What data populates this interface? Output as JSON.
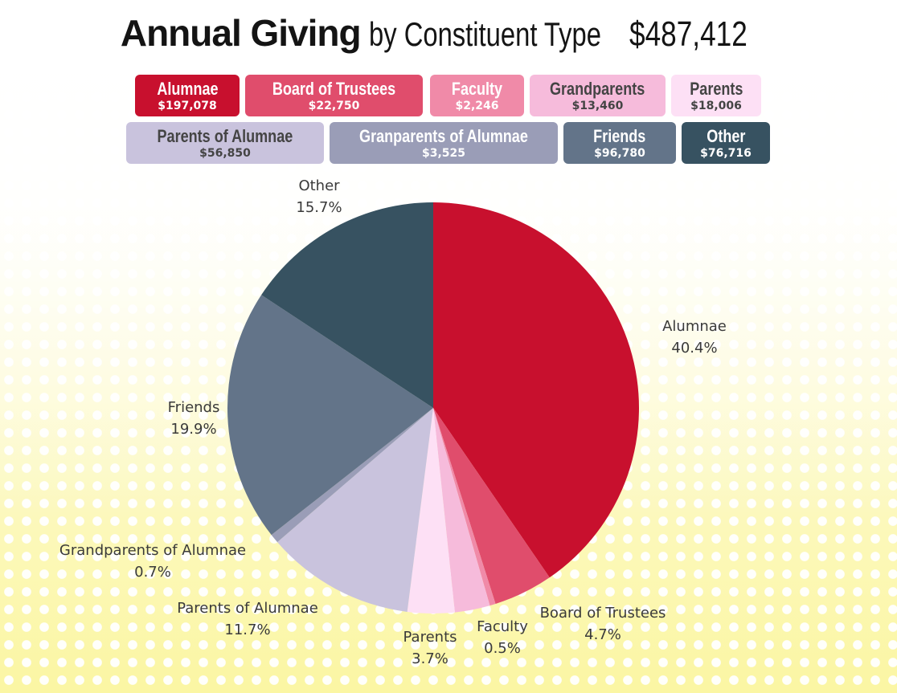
{
  "title": {
    "bold": "Annual Giving",
    "rest": "by Constituent Type",
    "total": "$487,412"
  },
  "legend": [
    {
      "name": "Alumnae",
      "amount": "$197,078",
      "bg": "#c8102e",
      "fg": "#ffffff"
    },
    {
      "name": "Board of Trustees",
      "amount": "$22,750",
      "bg": "#e04d6c",
      "fg": "#ffffff"
    },
    {
      "name": "Faculty",
      "amount": "$2,246",
      "bg": "#f08aa8",
      "fg": "#ffffff"
    },
    {
      "name": "Grandparents",
      "amount": "$13,460",
      "bg": "#f6bbdb",
      "fg": "#444444"
    },
    {
      "name": "Parents",
      "amount": "$18,006",
      "bg": "#fde0f5",
      "fg": "#444444"
    },
    {
      "name": "Parents of Alumnae",
      "amount": "$56,850",
      "bg": "#c9c3dd",
      "fg": "#444444"
    },
    {
      "name": "Granparents of Alumnae",
      "amount": "$3,525",
      "bg": "#9a9db7",
      "fg": "#ffffff"
    },
    {
      "name": "Friends",
      "amount": "$96,780",
      "bg": "#637489",
      "fg": "#ffffff"
    },
    {
      "name": "Other",
      "amount": "$76,716",
      "bg": "#375261",
      "fg": "#ffffff"
    }
  ],
  "chart_data": {
    "type": "pie",
    "start": "12 o'clock",
    "direction": "clockwise",
    "categories": [
      "Alumnae",
      "Board of Trustees",
      "Faculty",
      "Grandparents",
      "Parents",
      "Parents of Alumnae",
      "Grandparents of Alumnae",
      "Friends",
      "Other"
    ],
    "values": [
      197078,
      22750,
      2246,
      13460,
      18006,
      56850,
      3525,
      96780,
      76716
    ],
    "colors": [
      "#c8102e",
      "#e04d6c",
      "#f08aa8",
      "#f6bbdb",
      "#fde0f5",
      "#c9c3dd",
      "#9a9db7",
      "#637489",
      "#375261"
    ],
    "slice_labels": [
      {
        "name": "Alumnae",
        "pct": "40.4%"
      },
      {
        "name": "Board of Trustees",
        "pct": "4.7%"
      },
      {
        "name": "Faculty",
        "pct": "0.5%"
      },
      {
        "name": "",
        "pct": ""
      },
      {
        "name": "Parents",
        "pct": "3.7%"
      },
      {
        "name": "Parents of Alumnae",
        "pct": "11.7%"
      },
      {
        "name": "Grandparents of Alumnae",
        "pct": "0.7%"
      },
      {
        "name": "Friends",
        "pct": "19.9%"
      },
      {
        "name": "Other",
        "pct": "15.7%"
      }
    ]
  }
}
